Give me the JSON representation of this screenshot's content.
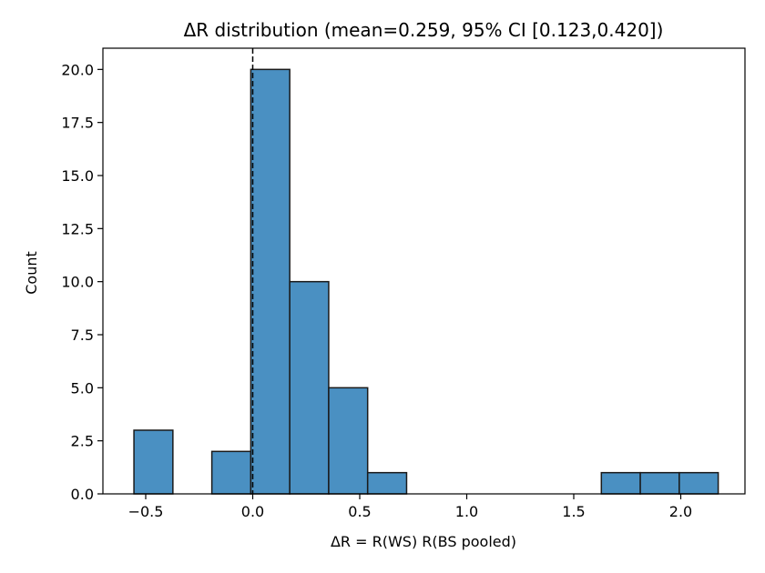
{
  "chart_data": {
    "type": "bar",
    "title": "ΔR distribution  (mean=0.259,  95% CI [0.123,0.420])",
    "xlabel": "ΔR = R(WS)  R(BS pooled)",
    "ylabel": "Count",
    "xlim": [
      -0.7,
      2.3
    ],
    "ylim": [
      0,
      21
    ],
    "bar_color": "#4a90c2",
    "edge_color": "#1a1a1a",
    "reference_line": {
      "x": 0.0,
      "style": "dashed",
      "color": "#000000"
    },
    "bins": [
      {
        "x0": -0.555,
        "x1": -0.373,
        "count": 3
      },
      {
        "x0": -0.373,
        "x1": -0.191,
        "count": 0
      },
      {
        "x0": -0.191,
        "x1": -0.009,
        "count": 2
      },
      {
        "x0": -0.009,
        "x1": 0.173,
        "count": 20
      },
      {
        "x0": 0.173,
        "x1": 0.355,
        "count": 10
      },
      {
        "x0": 0.355,
        "x1": 0.537,
        "count": 5
      },
      {
        "x0": 0.537,
        "x1": 0.719,
        "count": 1
      },
      {
        "x0": 0.719,
        "x1": 0.901,
        "count": 0
      },
      {
        "x0": 0.901,
        "x1": 1.083,
        "count": 0
      },
      {
        "x0": 1.083,
        "x1": 1.265,
        "count": 0
      },
      {
        "x0": 1.265,
        "x1": 1.447,
        "count": 0
      },
      {
        "x0": 1.447,
        "x1": 1.629,
        "count": 0
      },
      {
        "x0": 1.629,
        "x1": 1.811,
        "count": 1
      },
      {
        "x0": 1.811,
        "x1": 1.993,
        "count": 1
      },
      {
        "x0": 1.993,
        "x1": 2.175,
        "count": 1
      }
    ],
    "xticks": [
      {
        "value": -0.5,
        "label": "−0.5"
      },
      {
        "value": 0.0,
        "label": "0.0"
      },
      {
        "value": 0.5,
        "label": "0.5"
      },
      {
        "value": 1.0,
        "label": "1.0"
      },
      {
        "value": 1.5,
        "label": "1.5"
      },
      {
        "value": 2.0,
        "label": "2.0"
      }
    ],
    "yticks": [
      {
        "value": 0,
        "label": "0.0"
      },
      {
        "value": 2.5,
        "label": "2.5"
      },
      {
        "value": 5,
        "label": "5.0"
      },
      {
        "value": 7.5,
        "label": "7.5"
      },
      {
        "value": 10,
        "label": "10.0"
      },
      {
        "value": 12.5,
        "label": "12.5"
      },
      {
        "value": 15,
        "label": "15.0"
      },
      {
        "value": 17.5,
        "label": "17.5"
      },
      {
        "value": 20,
        "label": "20.0"
      }
    ]
  }
}
